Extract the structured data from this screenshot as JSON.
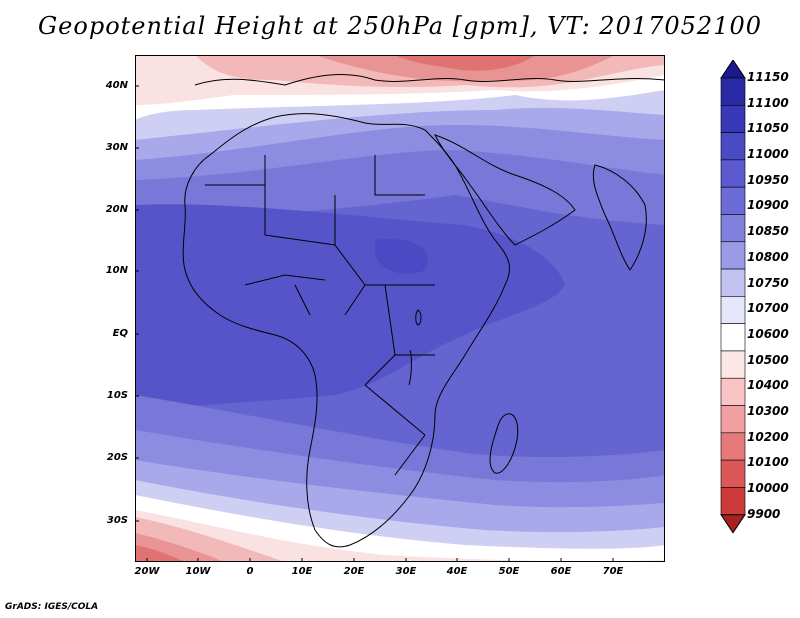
{
  "title": "Geopotential Height at 250hPa [gpm], VT: 2017052100",
  "credit": "GrADS: IGES/COLA",
  "map": {
    "lat_ticks": [
      "40N",
      "30N",
      "20N",
      "10N",
      "EQ",
      "10S",
      "20S",
      "30S"
    ],
    "lon_ticks": [
      "20W",
      "10W",
      "0",
      "10E",
      "20E",
      "30E",
      "40E",
      "50E",
      "60E",
      "70E"
    ]
  },
  "colorbar": {
    "levels": [
      "11150",
      "11100",
      "11050",
      "11000",
      "10950",
      "10900",
      "10850",
      "10800",
      "10750",
      "10700",
      "10600",
      "10500",
      "10400",
      "10300",
      "10200",
      "10100",
      "10000",
      "9900"
    ],
    "colors": [
      "#1a1a8c",
      "#2a2aa6",
      "#3838b8",
      "#4a4ac4",
      "#5b5bcf",
      "#6c6cd8",
      "#8080dd",
      "#9a9ae6",
      "#c2c2f0",
      "#e6e6fa",
      "#ffffff",
      "#fde6e6",
      "#f8c4c4",
      "#f0a0a0",
      "#e67a7a",
      "#dc5858",
      "#cc3a3a",
      "#a82020"
    ]
  }
}
